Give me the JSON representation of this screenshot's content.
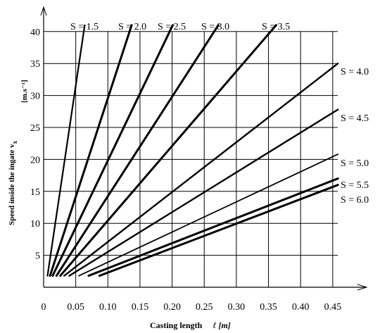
{
  "chart_data": {
    "type": "line",
    "xlabel": "Casting length",
    "xlabel_symbol": "ℓ [m]",
    "ylabel": "Speed inside the ingate v",
    "ylabel_subscript": "x",
    "ylabel_unit": "[m.s⁻¹]",
    "xlim": [
      0,
      0.46
    ],
    "ylim": [
      0,
      42
    ],
    "x_ticks": [
      "0",
      "0.05",
      "0.10",
      "0.15",
      "0.20",
      "0.25",
      "0.30",
      "0.35",
      "0.40",
      "0.45"
    ],
    "x_tick_values": [
      0,
      0.05,
      0.1,
      0.15,
      0.2,
      0.25,
      0.3,
      0.35,
      0.4,
      0.45
    ],
    "y_ticks": [
      "5",
      "10",
      "15",
      "20",
      "25",
      "30",
      "35",
      "40"
    ],
    "y_tick_values": [
      5,
      10,
      15,
      20,
      25,
      30,
      35,
      40
    ],
    "grid": true,
    "series": [
      {
        "name": "S = 1.5",
        "x": [
          0.006,
          0.064
        ],
        "y": [
          1.8,
          41.0
        ]
      },
      {
        "name": "S = 2.0",
        "x": [
          0.01,
          0.137
        ],
        "y": [
          1.8,
          41.0
        ]
      },
      {
        "name": "S = 2.5",
        "x": [
          0.014,
          0.201
        ],
        "y": [
          1.8,
          41.0
        ]
      },
      {
        "name": "S = 3.0",
        "x": [
          0.02,
          0.272
        ],
        "y": [
          1.8,
          41.0
        ]
      },
      {
        "name": "S = 3.5",
        "x": [
          0.026,
          0.362
        ],
        "y": [
          1.8,
          41.0
        ]
      },
      {
        "name": "S = 4.0",
        "x": [
          0.032,
          0.458
        ],
        "y": [
          1.8,
          35.0
        ]
      },
      {
        "name": "S = 4.5",
        "x": [
          0.04,
          0.458
        ],
        "y": [
          1.8,
          27.8
        ]
      },
      {
        "name": "S = 5.0",
        "x": [
          0.055,
          0.458
        ],
        "y": [
          1.8,
          20.8
        ]
      },
      {
        "name": "S = 5.5",
        "x": [
          0.07,
          0.458
        ],
        "y": [
          1.8,
          17.0
        ]
      },
      {
        "name": "S = 6.0",
        "x": [
          0.087,
          0.458
        ],
        "y": [
          1.8,
          16.0
        ]
      }
    ]
  }
}
